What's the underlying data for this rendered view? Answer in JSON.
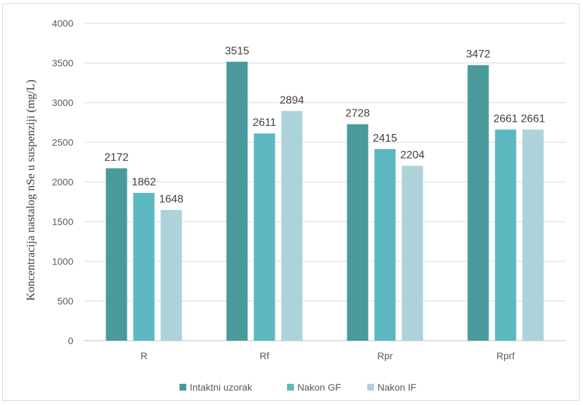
{
  "chart_data": {
    "type": "bar",
    "title": "",
    "xlabel": "",
    "ylabel": "Koncentracija nastalog nSe u suspenziji (mg/L)",
    "ylim": [
      0,
      4000
    ],
    "yticks": [
      0,
      500,
      1000,
      1500,
      2000,
      2500,
      3000,
      3500,
      4000
    ],
    "categories": [
      "R",
      "Rf",
      "Rpr",
      "Rprf"
    ],
    "series": [
      {
        "name": "Intaktni uzorak",
        "color": "#4a9a9c",
        "values": [
          2172,
          3515,
          2728,
          3472
        ]
      },
      {
        "name": "Nakon GF",
        "color": "#5bb8c1",
        "values": [
          1862,
          2611,
          2415,
          2661
        ]
      },
      {
        "name": "Nakon IF",
        "color": "#acd3d9",
        "values": [
          1648,
          2894,
          2204,
          2661
        ]
      }
    ],
    "grid": true,
    "legend": "bottom"
  }
}
